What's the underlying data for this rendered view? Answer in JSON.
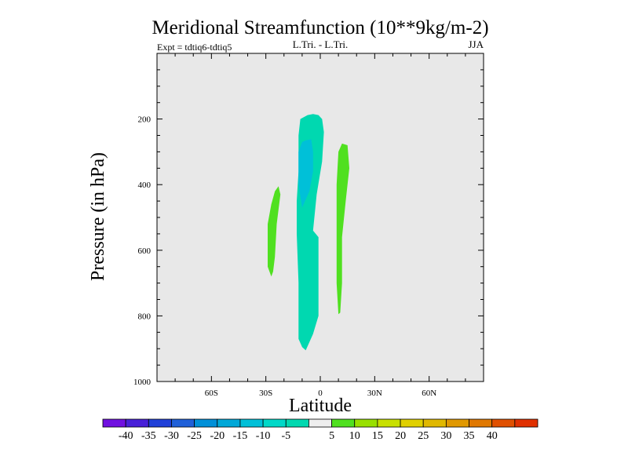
{
  "chart_data": {
    "type": "contour",
    "title": "Meridional Streamfunction (10**9kg/m-2)",
    "subtitle_left": "Expt = tdtiq6-tdtiq5",
    "subtitle_center": "L.Tri. - L.Tri.",
    "subtitle_right": "JJA",
    "xlabel": "Latitude",
    "ylabel": "Pressure (in hPa)",
    "x_range": [
      -90,
      90
    ],
    "y_range": [
      0,
      1000
    ],
    "y_inverted": true,
    "x_ticks": [
      {
        "value": -60,
        "label": "60S"
      },
      {
        "value": -30,
        "label": "30S"
      },
      {
        "value": 0,
        "label": "0"
      },
      {
        "value": 30,
        "label": "30N"
      },
      {
        "value": 60,
        "label": "60N"
      }
    ],
    "y_ticks": [
      {
        "value": 200,
        "label": "200"
      },
      {
        "value": 400,
        "label": "400"
      },
      {
        "value": 600,
        "label": "600"
      },
      {
        "value": 800,
        "label": "800"
      },
      {
        "value": 1000,
        "label": "1000"
      }
    ],
    "background_color": "#e8e8e8",
    "regions": [
      {
        "name": "region-neg-5-to-neg-10",
        "level": "-10 to -5",
        "color": "#00d8b0",
        "polygon": [
          [
            -4,
            185
          ],
          [
            -1,
            188
          ],
          [
            1,
            200
          ],
          [
            2,
            240
          ],
          [
            1,
            330
          ],
          [
            -2,
            430
          ],
          [
            -4,
            540
          ],
          [
            -1,
            560
          ],
          [
            -1,
            800
          ],
          [
            -4,
            855
          ],
          [
            -8,
            905
          ],
          [
            -10,
            895
          ],
          [
            -12,
            870
          ],
          [
            -12,
            700
          ],
          [
            -13,
            550
          ],
          [
            -13,
            450
          ],
          [
            -12,
            360
          ],
          [
            -12,
            250
          ],
          [
            -11,
            200
          ],
          [
            -7,
            188
          ]
        ]
      },
      {
        "name": "region-neg-10-to-neg-15",
        "level": "-15 to -10",
        "color": "#00c0d8",
        "polygon": [
          [
            -8,
            265
          ],
          [
            -5,
            262
          ],
          [
            -4,
            300
          ],
          [
            -4,
            360
          ],
          [
            -6,
            420
          ],
          [
            -10,
            470
          ],
          [
            -12,
            400
          ],
          [
            -12,
            300
          ],
          [
            -10,
            270
          ]
        ]
      },
      {
        "name": "region-pos-5-to-10-south",
        "level": "5 to 10",
        "color": "#50e020",
        "polygon": [
          [
            -23,
            405
          ],
          [
            -22,
            430
          ],
          [
            -24,
            520
          ],
          [
            -25,
            620
          ],
          [
            -26,
            665
          ],
          [
            -27,
            680
          ],
          [
            -29,
            650
          ],
          [
            -29,
            520
          ],
          [
            -27,
            460
          ],
          [
            -25,
            420
          ]
        ]
      },
      {
        "name": "region-pos-5-to-10-north",
        "level": "5 to 10",
        "color": "#50e020",
        "polygon": [
          [
            12,
            275
          ],
          [
            15,
            280
          ],
          [
            16,
            350
          ],
          [
            14,
            450
          ],
          [
            12,
            560
          ],
          [
            12,
            700
          ],
          [
            11,
            790
          ],
          [
            10,
            795
          ],
          [
            9,
            700
          ],
          [
            9,
            520
          ],
          [
            9,
            400
          ],
          [
            10,
            300
          ]
        ]
      }
    ],
    "colorbar": {
      "colors": [
        "#7010e0",
        "#4820d8",
        "#2040d8",
        "#2060d8",
        "#0090d8",
        "#00a8d8",
        "#00c0d8",
        "#00d8c8",
        "#00d8b0",
        "#eeeeee",
        "#50e020",
        "#98e000",
        "#c8e000",
        "#e0d000",
        "#e0b800",
        "#e09800",
        "#e07800",
        "#e05000",
        "#e03000"
      ],
      "labels": [
        "-40",
        "-35",
        "-30",
        "-25",
        "-20",
        "-15",
        "-10",
        "-5",
        "5",
        "10",
        "15",
        "20",
        "25",
        "30",
        "35",
        "40"
      ]
    }
  }
}
